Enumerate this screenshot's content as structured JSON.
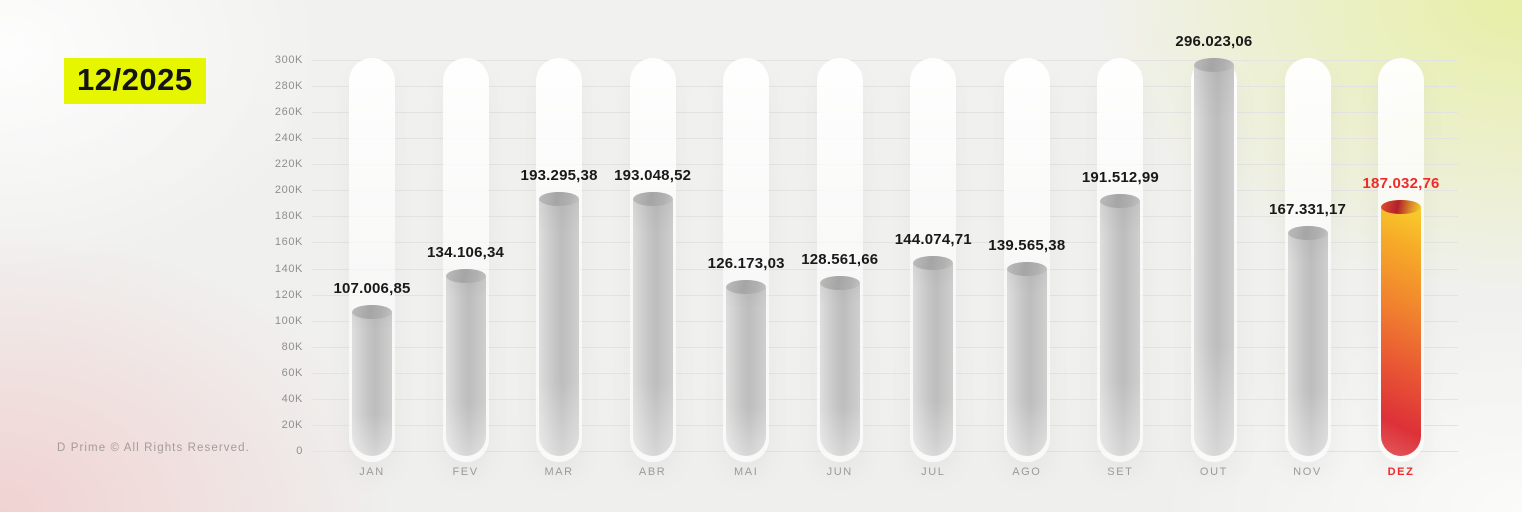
{
  "header": {
    "period": "12/2025"
  },
  "footer": {
    "copyright": "D Prime © All Rights Reserved."
  },
  "colors": {
    "period_highlight_bg": "#e6f600",
    "accent_red": "#ee2b2b",
    "bar_grey": "#c6c6c6",
    "grid": "#e3e3e1"
  },
  "chart_data": {
    "type": "bar",
    "title": "12/2025",
    "xlabel": "",
    "ylabel": "",
    "ylim": [
      0,
      300000
    ],
    "grid": true,
    "legend_position": "none",
    "categories": [
      "JAN",
      "FEV",
      "MAR",
      "ABR",
      "MAI",
      "JUN",
      "JUL",
      "AGO",
      "SET",
      "OUT",
      "NOV",
      "DEZ"
    ],
    "values": [
      107006.85,
      134106.34,
      193295.38,
      193048.52,
      126173.03,
      128561.66,
      144074.71,
      139565.38,
      191512.99,
      296023.06,
      167331.17,
      187032.76
    ],
    "value_labels": [
      "107.006,85",
      "134.106,34",
      "193.295,38",
      "193.048,52",
      "126.173,03",
      "128.561,66",
      "144.074,71",
      "139.565,38",
      "191.512,99",
      "296.023,06",
      "167.331,17",
      "187.032,76"
    ],
    "y_tick_values": [
      0,
      20000,
      40000,
      60000,
      80000,
      100000,
      120000,
      140000,
      160000,
      180000,
      200000,
      220000,
      240000,
      260000,
      280000,
      300000
    ],
    "y_tick_labels": [
      "0",
      "20K",
      "40K",
      "60K",
      "80K",
      "100K",
      "120K",
      "140K",
      "160K",
      "180K",
      "200K",
      "220K",
      "240K",
      "260K",
      "280K",
      "300K"
    ],
    "highlight_index": 11
  }
}
